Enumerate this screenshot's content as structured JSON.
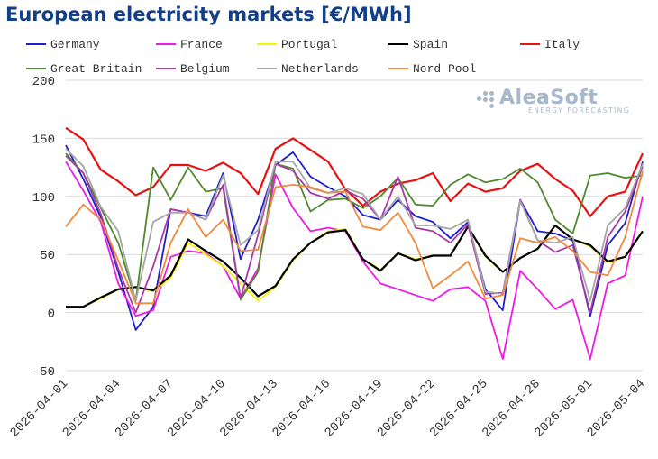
{
  "title": "European electricity markets [€/MWh]",
  "logo": {
    "name": "AleaSoft",
    "tagline": "ENERGY FORECASTING"
  },
  "chart_data": {
    "type": "line",
    "title": "European electricity markets [€/MWh]",
    "xlabel": "",
    "ylabel": "",
    "ylim": [
      -50,
      200
    ],
    "yticks": [
      -50,
      0,
      50,
      100,
      150,
      200
    ],
    "grid": "horizontal",
    "legend_position": "top",
    "x": [
      "2026-04-01",
      "2026-04-02",
      "2026-04-03",
      "2026-04-04",
      "2026-04-05",
      "2026-04-06",
      "2026-04-07",
      "2026-04-08",
      "2026-04-09",
      "2026-04-10",
      "2026-04-11",
      "2026-04-12",
      "2026-04-13",
      "2026-04-14",
      "2026-04-15",
      "2026-04-16",
      "2026-04-17",
      "2026-04-18",
      "2026-04-19",
      "2026-04-20",
      "2026-04-21",
      "2026-04-22",
      "2026-04-23",
      "2026-04-24",
      "2026-04-25",
      "2026-04-26",
      "2026-04-27",
      "2026-04-28",
      "2026-04-29",
      "2026-04-30",
      "2026-05-01",
      "2026-05-02",
      "2026-05-03",
      "2026-05-04"
    ],
    "xtick_labels": [
      "2026-04-01",
      "2026-04-04",
      "2026-04-07",
      "2026-04-10",
      "2026-04-13",
      "2026-04-16",
      "2026-04-19",
      "2026-04-22",
      "2026-04-25",
      "2026-04-28",
      "2026-05-01",
      "2026-05-04"
    ],
    "series": [
      {
        "name": "Germany",
        "color": "#1f1fcc",
        "values": [
          144,
          115,
          82,
          35,
          -15,
          5,
          89,
          86,
          83,
          120,
          46,
          80,
          127,
          138,
          117,
          108,
          100,
          84,
          80,
          97,
          83,
          78,
          64,
          78,
          20,
          2,
          97,
          70,
          68,
          62,
          -3,
          58,
          77,
          130
        ]
      },
      {
        "name": "France",
        "color": "#f018e8",
        "values": [
          130,
          105,
          78,
          25,
          -3,
          2,
          48,
          53,
          51,
          40,
          12,
          38,
          119,
          90,
          70,
          73,
          70,
          44,
          25,
          20,
          15,
          10,
          20,
          22,
          10,
          -40,
          36,
          20,
          3,
          11,
          -40,
          25,
          32,
          100
        ]
      },
      {
        "name": "Portugal",
        "color": "#f2f20a",
        "values": [
          5,
          5,
          12,
          20,
          22,
          18,
          30,
          60,
          50,
          40,
          25,
          10,
          22,
          45,
          60,
          70,
          72,
          46,
          37,
          51,
          46,
          49,
          49,
          74,
          48,
          35,
          47,
          55,
          75,
          63,
          57,
          43,
          48,
          70
        ]
      },
      {
        "name": "Spain",
        "color": "#000000",
        "values": [
          5,
          5,
          13,
          20,
          22,
          19,
          32,
          63,
          53,
          44,
          30,
          14,
          23,
          46,
          60,
          69,
          71,
          46,
          36,
          51,
          45,
          49,
          49,
          74,
          49,
          35,
          47,
          55,
          75,
          63,
          58,
          44,
          48,
          70
        ]
      },
      {
        "name": "Italy",
        "color": "#e81010",
        "values": [
          159,
          149,
          123,
          113,
          101,
          108,
          127,
          127,
          122,
          129,
          120,
          102,
          141,
          150,
          140,
          130,
          106,
          92,
          104,
          111,
          114,
          120,
          96,
          111,
          104,
          107,
          122,
          128,
          115,
          105,
          83,
          100,
          104,
          137
        ]
      },
      {
        "name": "Great Britain",
        "color": "#4e8a2e",
        "values": [
          137,
          120,
          90,
          60,
          10,
          125,
          97,
          125,
          104,
          107,
          11,
          35,
          128,
          124,
          87,
          97,
          98,
          90,
          100,
          116,
          93,
          92,
          110,
          119,
          112,
          115,
          124,
          112,
          80,
          68,
          118,
          120,
          116,
          118
        ]
      },
      {
        "name": "Belgium",
        "color": "#a83aa8",
        "values": [
          135,
          120,
          85,
          38,
          0,
          40,
          89,
          86,
          80,
          110,
          12,
          67,
          128,
          122,
          103,
          98,
          105,
          98,
          80,
          117,
          73,
          70,
          60,
          76,
          16,
          17,
          97,
          62,
          52,
          58,
          0,
          65,
          87,
          126
        ]
      },
      {
        "name": "Netherlands",
        "color": "#a6a6a6",
        "values": [
          141,
          126,
          91,
          70,
          10,
          78,
          86,
          86,
          80,
          118,
          58,
          71,
          130,
          130,
          107,
          103,
          107,
          102,
          80,
          100,
          75,
          75,
          72,
          80,
          18,
          16,
          96,
          62,
          60,
          65,
          10,
          75,
          90,
          128
        ]
      },
      {
        "name": "Nord Pool",
        "color": "#f08a3c",
        "values": [
          74,
          93,
          80,
          45,
          8,
          8,
          60,
          89,
          65,
          80,
          53,
          54,
          108,
          110,
          108,
          103,
          104,
          74,
          71,
          86,
          60,
          21,
          32,
          44,
          12,
          15,
          64,
          60,
          65,
          53,
          35,
          32,
          65,
          122
        ]
      }
    ]
  }
}
